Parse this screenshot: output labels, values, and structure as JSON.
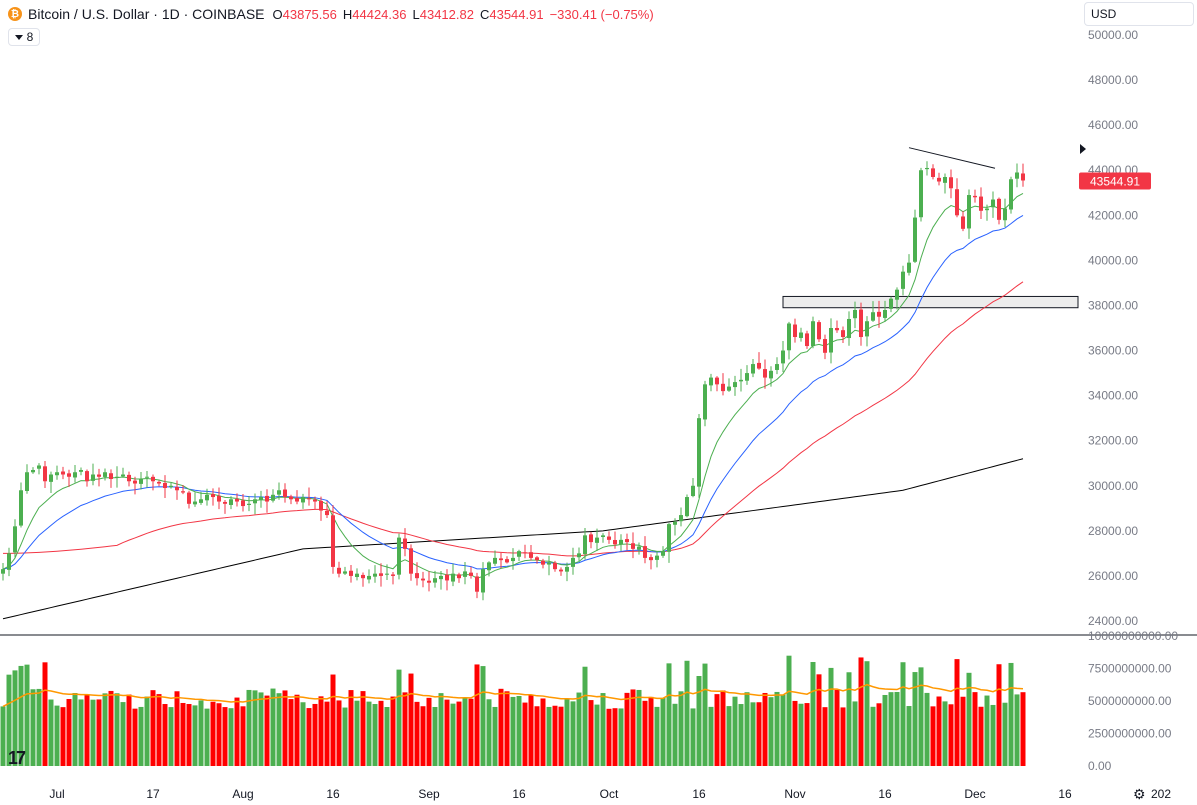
{
  "header": {
    "coin_symbol": "₿",
    "symbol": "Bitcoin / U.S. Dollar · 1D · COINBASE",
    "o_key": "O",
    "o_val": "43875.56",
    "h_key": "H",
    "h_val": "44424.36",
    "l_key": "L",
    "l_val": "43412.82",
    "c_key": "C",
    "c_val": "43544.91",
    "change": "−330.41 (−0.75%)"
  },
  "indicators_button": {
    "count": "8"
  },
  "currency_select": {
    "value": "USD"
  },
  "logo": {
    "text": "17"
  },
  "colors": {
    "up": "#4caf50",
    "down": "#f23645",
    "vol_up": "#4caf50",
    "vol_down": "#ff0000",
    "ema_fast": "#4caf50",
    "ema_mid": "#2962ff",
    "ema_slow": "#f23645",
    "ema_long": "#000000",
    "vol_ma": "#ff9800",
    "last_price_bg": "#f23645",
    "grid": "#e0e3eb"
  },
  "chart_data": {
    "type": "candlestick",
    "y_axis": {
      "range": [
        23700,
        50700
      ],
      "ticks": [
        "24000.00",
        "26000.00",
        "28000.00",
        "30000.00",
        "32000.00",
        "34000.00",
        "36000.00",
        "38000.00",
        "40000.00",
        "42000.00",
        "44000.00",
        "46000.00",
        "48000.00",
        "50000.00"
      ]
    },
    "volume_axis": {
      "range": [
        0,
        10000000000
      ],
      "ticks": [
        "0.00",
        "2500000000.00",
        "5000000000.00",
        "7500000000.00",
        "10000000000.00"
      ]
    },
    "x_axis": {
      "first_date": "2023-06-22",
      "tick_labels": [
        {
          "label": "Jul",
          "date": "2023-07-01"
        },
        {
          "label": "17",
          "date": "2023-07-17"
        },
        {
          "label": "Aug",
          "date": "2023-08-01"
        },
        {
          "label": "16",
          "date": "2023-08-16"
        },
        {
          "label": "Sep",
          "date": "2023-09-01"
        },
        {
          "label": "16",
          "date": "2023-09-16"
        },
        {
          "label": "Oct",
          "date": "2023-10-01"
        },
        {
          "label": "16",
          "date": "2023-10-16"
        },
        {
          "label": "Nov",
          "date": "2023-11-01"
        },
        {
          "label": "16",
          "date": "2023-11-16"
        },
        {
          "label": "Dec",
          "date": "2023-12-01"
        },
        {
          "label": "16",
          "date": "2023-12-16"
        },
        {
          "label": "202",
          "date": "2024-01-01"
        }
      ]
    },
    "last_price": "43544.91",
    "close_anchors": [
      [
        0,
        26300
      ],
      [
        1,
        27000
      ],
      [
        2,
        28200
      ],
      [
        3,
        29800
      ],
      [
        4,
        30600
      ],
      [
        5,
        30700
      ],
      [
        6,
        30900
      ],
      [
        7,
        30200
      ],
      [
        8,
        30500
      ],
      [
        9,
        30600
      ],
      [
        10,
        30500
      ],
      [
        11,
        30400
      ],
      [
        12,
        30600
      ],
      [
        13,
        30700
      ],
      [
        14,
        30200
      ],
      [
        15,
        30500
      ],
      [
        16,
        30400
      ],
      [
        17,
        30600
      ],
      [
        18,
        30300
      ],
      [
        19,
        30400
      ],
      [
        20,
        30500
      ],
      [
        21,
        30200
      ],
      [
        22,
        30100
      ],
      [
        23,
        30300
      ],
      [
        24,
        30400
      ],
      [
        25,
        30200
      ],
      [
        26,
        30100
      ],
      [
        27,
        29900
      ],
      [
        28,
        30000
      ],
      [
        29,
        29800
      ],
      [
        30,
        29700
      ],
      [
        31,
        29200
      ],
      [
        32,
        29300
      ],
      [
        33,
        29400
      ],
      [
        34,
        29600
      ],
      [
        35,
        29500
      ],
      [
        36,
        29300
      ],
      [
        37,
        29200
      ],
      [
        38,
        29400
      ],
      [
        39,
        29300
      ],
      [
        40,
        29100
      ],
      [
        41,
        29200
      ],
      [
        42,
        29400
      ],
      [
        43,
        29500
      ],
      [
        44,
        29300
      ],
      [
        45,
        29600
      ],
      [
        46,
        29800
      ],
      [
        47,
        29500
      ],
      [
        48,
        29400
      ],
      [
        49,
        29300
      ],
      [
        50,
        29500
      ],
      [
        51,
        29400
      ],
      [
        52,
        29300
      ],
      [
        53,
        28900
      ],
      [
        54,
        28700
      ],
      [
        55,
        26400
      ],
      [
        56,
        26100
      ],
      [
        57,
        26200
      ],
      [
        58,
        26000
      ],
      [
        59,
        26100
      ],
      [
        60,
        25900
      ],
      [
        61,
        26000
      ],
      [
        62,
        26100
      ],
      [
        63,
        26000
      ],
      [
        64,
        26100
      ],
      [
        65,
        26000
      ],
      [
        66,
        27700
      ],
      [
        67,
        27200
      ],
      [
        68,
        26100
      ],
      [
        69,
        25900
      ],
      [
        70,
        25800
      ],
      [
        71,
        25700
      ],
      [
        72,
        25900
      ],
      [
        73,
        26000
      ],
      [
        74,
        25800
      ],
      [
        75,
        26100
      ],
      [
        76,
        25900
      ],
      [
        77,
        26200
      ],
      [
        78,
        26000
      ],
      [
        79,
        25300
      ],
      [
        80,
        26300
      ],
      [
        81,
        26600
      ],
      [
        82,
        26800
      ],
      [
        83,
        26700
      ],
      [
        84,
        26600
      ],
      [
        85,
        26800
      ],
      [
        86,
        27100
      ],
      [
        87,
        27000
      ],
      [
        88,
        26800
      ],
      [
        89,
        26700
      ],
      [
        90,
        26500
      ],
      [
        91,
        26600
      ],
      [
        92,
        26300
      ],
      [
        93,
        26200
      ],
      [
        94,
        26400
      ],
      [
        95,
        26800
      ],
      [
        96,
        27000
      ],
      [
        97,
        27800
      ],
      [
        98,
        27500
      ],
      [
        99,
        27700
      ],
      [
        100,
        27800
      ],
      [
        101,
        27600
      ],
      [
        102,
        27400
      ],
      [
        103,
        27600
      ],
      [
        104,
        27500
      ],
      [
        105,
        27200
      ],
      [
        106,
        27300
      ],
      [
        107,
        26800
      ],
      [
        108,
        26700
      ],
      [
        109,
        26900
      ],
      [
        110,
        27100
      ],
      [
        111,
        28300
      ],
      [
        112,
        28400
      ],
      [
        113,
        28700
      ],
      [
        114,
        29500
      ],
      [
        115,
        30000
      ],
      [
        116,
        33000
      ],
      [
        117,
        34500
      ],
      [
        118,
        34800
      ],
      [
        119,
        34500
      ],
      [
        120,
        34200
      ],
      [
        121,
        34400
      ],
      [
        122,
        34600
      ],
      [
        123,
        34700
      ],
      [
        124,
        35000
      ],
      [
        125,
        35400
      ],
      [
        126,
        35200
      ],
      [
        127,
        34800
      ],
      [
        128,
        35100
      ],
      [
        129,
        35400
      ],
      [
        130,
        36000
      ],
      [
        131,
        37200
      ],
      [
        132,
        36600
      ],
      [
        133,
        36800
      ],
      [
        134,
        36200
      ],
      [
        135,
        37300
      ],
      [
        136,
        36500
      ],
      [
        137,
        35900
      ],
      [
        138,
        37000
      ],
      [
        139,
        36900
      ],
      [
        140,
        36600
      ],
      [
        141,
        37400
      ],
      [
        142,
        37800
      ],
      [
        143,
        36600
      ],
      [
        144,
        37300
      ],
      [
        145,
        37700
      ],
      [
        146,
        37500
      ],
      [
        147,
        37800
      ],
      [
        148,
        38300
      ],
      [
        149,
        38700
      ],
      [
        150,
        39500
      ],
      [
        151,
        39900
      ],
      [
        152,
        41900
      ],
      [
        153,
        44000
      ],
      [
        154,
        44100
      ],
      [
        155,
        43700
      ],
      [
        156,
        43500
      ],
      [
        157,
        43700
      ],
      [
        158,
        43200
      ],
      [
        159,
        42000
      ],
      [
        160,
        41400
      ],
      [
        161,
        42900
      ],
      [
        162,
        42800
      ],
      [
        163,
        42200
      ],
      [
        164,
        42300
      ],
      [
        165,
        42700
      ],
      [
        166,
        41800
      ],
      [
        167,
        42300
      ],
      [
        168,
        43600
      ],
      [
        169,
        43900
      ],
      [
        170,
        43544.91
      ]
    ],
    "range_box": [
      37900,
      38400
    ],
    "trend_line": [
      [
        151,
        45000
      ],
      [
        162,
        44000
      ]
    ],
    "moving_average_anchors": {
      "ema_long": [
        [
          0,
          24100
        ],
        [
          50,
          27200
        ],
        [
          100,
          28000
        ],
        [
          150,
          29800
        ],
        [
          170,
          31200
        ]
      ]
    }
  }
}
